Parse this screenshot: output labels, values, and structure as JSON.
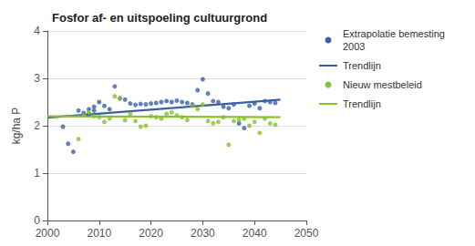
{
  "chart_data": {
    "type": "scatter",
    "title": "Fosfor af- en uitspoeling cultuurgrond",
    "ylabel": "kg/ha P",
    "xlim": [
      2000,
      2050
    ],
    "ylim": [
      0,
      4
    ],
    "xticks": [
      2000,
      2010,
      2020,
      2030,
      2040,
      2050
    ],
    "yticks": [
      0,
      1,
      2,
      3,
      4
    ],
    "grid": true,
    "legend": "right",
    "series": [
      {
        "name": "Extrapolatie bemesting\n2003",
        "type": "scatter",
        "color": "#3a5fa8",
        "x": [
          2003,
          2004,
          2005,
          2006,
          2007,
          2008,
          2008,
          2009,
          2009,
          2010,
          2011,
          2012,
          2013,
          2014,
          2015,
          2016,
          2017,
          2018,
          2019,
          2020,
          2021,
          2022,
          2023,
          2024,
          2025,
          2026,
          2027,
          2028,
          2029,
          2030,
          2031,
          2032,
          2033,
          2034,
          2035,
          2036,
          2037,
          2038,
          2039,
          2040,
          2041,
          2042,
          2043,
          2044
        ],
        "values": [
          1.98,
          1.62,
          1.45,
          2.32,
          2.27,
          2.35,
          2.25,
          2.4,
          2.32,
          2.5,
          2.42,
          2.35,
          2.83,
          2.58,
          2.55,
          2.47,
          2.44,
          2.46,
          2.45,
          2.47,
          2.48,
          2.5,
          2.52,
          2.5,
          2.53,
          2.5,
          2.48,
          2.45,
          2.75,
          2.98,
          2.68,
          2.52,
          2.5,
          2.4,
          2.37,
          2.45,
          2.05,
          1.95,
          2.42,
          2.47,
          2.37,
          2.52,
          2.5,
          2.48
        ]
      },
      {
        "name": "Trendlijn",
        "type": "line",
        "color": "#3a5fa8",
        "x": [
          2000,
          2045
        ],
        "values": [
          2.17,
          2.55
        ]
      },
      {
        "name": "Nieuw mestbeleid",
        "type": "scatter",
        "color": "#8abf2e",
        "x": [
          2006,
          2007,
          2008,
          2009,
          2010,
          2011,
          2012,
          2013,
          2014,
          2015,
          2016,
          2017,
          2018,
          2019,
          2020,
          2021,
          2022,
          2023,
          2024,
          2025,
          2026,
          2027,
          2028,
          2029,
          2030,
          2031,
          2032,
          2033,
          2034,
          2035,
          2036,
          2037,
          2038,
          2039,
          2040,
          2041,
          2042,
          2043,
          2044
        ],
        "values": [
          1.72,
          2.22,
          2.28,
          2.2,
          2.18,
          2.08,
          2.15,
          2.62,
          2.57,
          2.12,
          2.25,
          2.1,
          1.98,
          2.0,
          2.2,
          2.18,
          2.15,
          2.25,
          2.28,
          2.22,
          2.18,
          2.12,
          2.42,
          2.35,
          2.45,
          2.1,
          2.05,
          2.08,
          2.18,
          1.6,
          2.1,
          2.12,
          2.15,
          2.0,
          2.08,
          1.85,
          2.15,
          2.05,
          2.02
        ]
      },
      {
        "name": "Trendlijn",
        "type": "line",
        "color": "#8abf2e",
        "x": [
          2000,
          2045
        ],
        "values": [
          2.2,
          2.18
        ]
      }
    ]
  }
}
